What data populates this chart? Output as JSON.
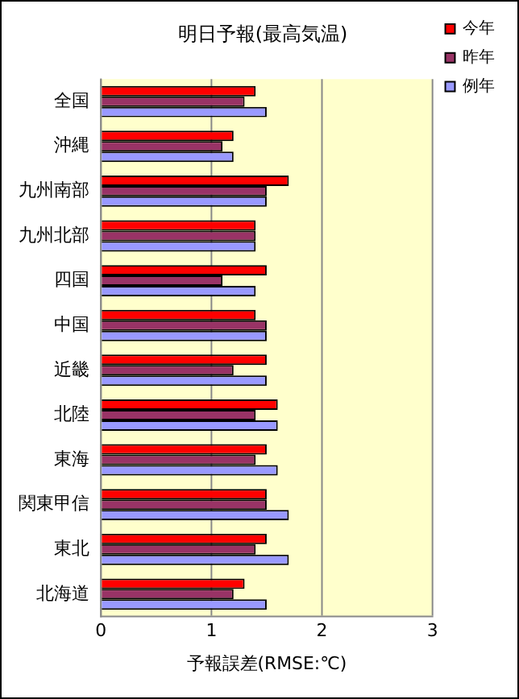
{
  "chart_data": {
    "type": "bar",
    "orientation": "horizontal",
    "title": "明日予報(最高気温)",
    "xlabel": "予報誤差(RMSE:℃)",
    "categories": [
      "全国",
      "沖縄",
      "九州南部",
      "九州北部",
      "四国",
      "中国",
      "近畿",
      "北陸",
      "東海",
      "関東甲信",
      "東北",
      "北海道"
    ],
    "series": [
      {
        "name": "今年",
        "color": "#ff0000",
        "values": [
          1.4,
          1.2,
          1.7,
          1.4,
          1.5,
          1.4,
          1.5,
          1.6,
          1.5,
          1.5,
          1.5,
          1.3
        ]
      },
      {
        "name": "昨年",
        "color": "#993366",
        "values": [
          1.3,
          1.1,
          1.5,
          1.4,
          1.1,
          1.5,
          1.2,
          1.4,
          1.4,
          1.5,
          1.4,
          1.2
        ]
      },
      {
        "name": "例年",
        "color": "#9999ff",
        "values": [
          1.5,
          1.2,
          1.5,
          1.4,
          1.4,
          1.5,
          1.5,
          1.6,
          1.6,
          1.7,
          1.7,
          1.5
        ]
      }
    ],
    "xlim": [
      0,
      3
    ],
    "xticks": [
      0,
      1,
      2,
      3
    ],
    "grid": "x",
    "legend": "top right"
  }
}
